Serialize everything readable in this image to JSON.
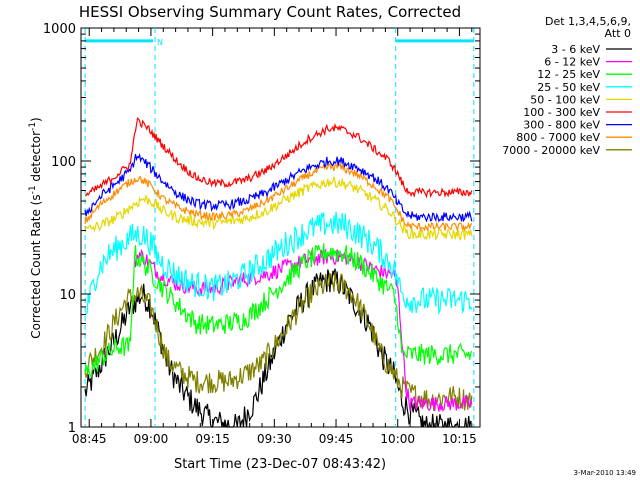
{
  "chart_data": {
    "type": "line",
    "title": "HESSI Observing Summary Count Rates, Corrected",
    "ylabel_parts": [
      "Corrected Count Rate (s",
      "-1",
      " detector",
      "-1",
      ")"
    ],
    "xlabel": "Start Time (23-Dec-07 08:43:42)",
    "timestamp": "3-Mar-2010 13:49",
    "ylog": true,
    "ylim": [
      1,
      1000
    ],
    "xlim_minutes_after_0843": [
      0,
      97
    ],
    "x_ticks": [
      {
        "label": "08:45",
        "minute": 2
      },
      {
        "label": "09:00",
        "minute": 17
      },
      {
        "label": "09:15",
        "minute": 32
      },
      {
        "label": "09:30",
        "minute": 47
      },
      {
        "label": "09:45",
        "minute": 62
      },
      {
        "label": "10:00",
        "minute": 77
      },
      {
        "label": "10:15",
        "minute": 92
      }
    ],
    "y_ticks": [
      {
        "label": "1",
        "value": 1
      },
      {
        "label": "10",
        "value": 10
      },
      {
        "label": "100",
        "value": 100
      },
      {
        "label": "1000",
        "value": 1000
      }
    ],
    "legend_header": [
      "Det 1,3,4,5,6,9,",
      "Att 0"
    ],
    "legend_position": "right",
    "markers": {
      "vlines_minutes": [
        1,
        18,
        76.5,
        95.5
      ],
      "bars": [
        {
          "from": 1,
          "to": 17.5,
          "value": 800,
          "label": "N"
        },
        {
          "from": 76.5,
          "to": 95.5,
          "value": 800,
          "label": ""
        }
      ],
      "color": "#00e5ff"
    },
    "series": [
      {
        "name": "3 - 6 keV",
        "color": "#000000",
        "noise": 0.1,
        "points": [
          [
            1,
            1.8
          ],
          [
            5,
            3
          ],
          [
            9,
            5
          ],
          [
            12,
            8
          ],
          [
            15,
            10
          ],
          [
            17,
            8
          ],
          [
            19,
            5
          ],
          [
            21,
            3
          ],
          [
            24,
            2
          ],
          [
            28,
            1.4
          ],
          [
            32,
            1.1
          ],
          [
            38,
            1.0
          ],
          [
            42,
            1.5
          ],
          [
            46,
            3
          ],
          [
            50,
            6
          ],
          [
            54,
            9
          ],
          [
            58,
            12
          ],
          [
            61,
            13
          ],
          [
            63,
            12
          ],
          [
            66,
            9
          ],
          [
            70,
            6
          ],
          [
            73,
            3.5
          ],
          [
            76,
            2.5
          ],
          [
            78,
            1.6
          ],
          [
            80,
            1.3
          ],
          [
            84,
            1.0
          ],
          [
            95,
            1.0
          ]
        ]
      },
      {
        "name": "6 - 12 keV",
        "color": "#ff00ff",
        "noise": 0.06,
        "points": [
          [
            13,
            17
          ],
          [
            14,
            20
          ],
          [
            16,
            18
          ],
          [
            19,
            14
          ],
          [
            23,
            12
          ],
          [
            28,
            11
          ],
          [
            32,
            11
          ],
          [
            36,
            12
          ],
          [
            40,
            13
          ],
          [
            45,
            14
          ],
          [
            50,
            16
          ],
          [
            55,
            18
          ],
          [
            60,
            19
          ],
          [
            64,
            19
          ],
          [
            68,
            17
          ],
          [
            72,
            15
          ],
          [
            76,
            14
          ],
          [
            77,
            11
          ],
          [
            79,
            2
          ],
          [
            80,
            1.5
          ],
          [
            95,
            1.5
          ]
        ]
      },
      {
        "name": "12 - 25 keV",
        "color": "#00ff00",
        "noise": 0.08,
        "points": [
          [
            1,
            2.5
          ],
          [
            6,
            3.5
          ],
          [
            9,
            4
          ],
          [
            12,
            4
          ],
          [
            13,
            20
          ],
          [
            16,
            16
          ],
          [
            20,
            11
          ],
          [
            24,
            8
          ],
          [
            28,
            6
          ],
          [
            32,
            5.8
          ],
          [
            36,
            6
          ],
          [
            40,
            6.5
          ],
          [
            45,
            9
          ],
          [
            50,
            13
          ],
          [
            55,
            18
          ],
          [
            60,
            21
          ],
          [
            64,
            20
          ],
          [
            68,
            17
          ],
          [
            72,
            13
          ],
          [
            76,
            10
          ],
          [
            77,
            7
          ],
          [
            78,
            3.5
          ],
          [
            95,
            3.5
          ]
        ]
      },
      {
        "name": "25 - 50 keV",
        "color": "#00ffff",
        "noise": 0.1,
        "points": [
          [
            1,
            7
          ],
          [
            4,
            15
          ],
          [
            7,
            20
          ],
          [
            10,
            24
          ],
          [
            13,
            28
          ],
          [
            15,
            28
          ],
          [
            17,
            24
          ],
          [
            19,
            18
          ],
          [
            23,
            14
          ],
          [
            27,
            12
          ],
          [
            32,
            11
          ],
          [
            36,
            12
          ],
          [
            40,
            14
          ],
          [
            45,
            18
          ],
          [
            50,
            24
          ],
          [
            55,
            30
          ],
          [
            60,
            34
          ],
          [
            64,
            33
          ],
          [
            68,
            28
          ],
          [
            72,
            22
          ],
          [
            76,
            16
          ],
          [
            78,
            10
          ],
          [
            80,
            9
          ],
          [
            95,
            9
          ]
        ]
      },
      {
        "name": "50 - 100 keV",
        "color": "#e5d800",
        "noise": 0.04,
        "points": [
          [
            1,
            30
          ],
          [
            5,
            33
          ],
          [
            9,
            38
          ],
          [
            12,
            45
          ],
          [
            15,
            52
          ],
          [
            17,
            50
          ],
          [
            20,
            42
          ],
          [
            24,
            37
          ],
          [
            28,
            35
          ],
          [
            32,
            34
          ],
          [
            36,
            35
          ],
          [
            40,
            37
          ],
          [
            45,
            42
          ],
          [
            50,
            52
          ],
          [
            55,
            62
          ],
          [
            60,
            70
          ],
          [
            63,
            69
          ],
          [
            67,
            62
          ],
          [
            71,
            52
          ],
          [
            75,
            42
          ],
          [
            77,
            35
          ],
          [
            79,
            29
          ],
          [
            81,
            28
          ],
          [
            95,
            28
          ]
        ]
      },
      {
        "name": "100 - 300 keV",
        "color": "#ff0000",
        "noise": 0.03,
        "points": [
          [
            1,
            55
          ],
          [
            5,
            65
          ],
          [
            9,
            80
          ],
          [
            12,
            95
          ],
          [
            13.5,
            200
          ],
          [
            16,
            180
          ],
          [
            20,
            130
          ],
          [
            24,
            95
          ],
          [
            28,
            75
          ],
          [
            32,
            68
          ],
          [
            36,
            68
          ],
          [
            40,
            72
          ],
          [
            45,
            85
          ],
          [
            50,
            110
          ],
          [
            55,
            145
          ],
          [
            60,
            175
          ],
          [
            63,
            175
          ],
          [
            67,
            155
          ],
          [
            71,
            125
          ],
          [
            75,
            100
          ],
          [
            77,
            80
          ],
          [
            79,
            60
          ],
          [
            81,
            58
          ],
          [
            95,
            58
          ]
        ]
      },
      {
        "name": "300 - 800 keV",
        "color": "#0000ff",
        "noise": 0.035,
        "points": [
          [
            1,
            40
          ],
          [
            5,
            55
          ],
          [
            9,
            70
          ],
          [
            12,
            85
          ],
          [
            13.5,
            110
          ],
          [
            16,
            95
          ],
          [
            20,
            70
          ],
          [
            24,
            55
          ],
          [
            28,
            48
          ],
          [
            32,
            46
          ],
          [
            36,
            47
          ],
          [
            40,
            50
          ],
          [
            45,
            58
          ],
          [
            50,
            72
          ],
          [
            55,
            88
          ],
          [
            60,
            100
          ],
          [
            63,
            100
          ],
          [
            67,
            90
          ],
          [
            71,
            76
          ],
          [
            75,
            60
          ],
          [
            77,
            48
          ],
          [
            79,
            40
          ],
          [
            81,
            38
          ],
          [
            95,
            38
          ]
        ]
      },
      {
        "name": "800 - 7000 keV",
        "color": "#ff8c00",
        "noise": 0.03,
        "points": [
          [
            1,
            35
          ],
          [
            5,
            48
          ],
          [
            9,
            60
          ],
          [
            12,
            70
          ],
          [
            14,
            75
          ],
          [
            17,
            65
          ],
          [
            20,
            52
          ],
          [
            24,
            44
          ],
          [
            28,
            40
          ],
          [
            32,
            38
          ],
          [
            36,
            39
          ],
          [
            40,
            42
          ],
          [
            45,
            50
          ],
          [
            50,
            62
          ],
          [
            55,
            78
          ],
          [
            60,
            90
          ],
          [
            63,
            90
          ],
          [
            67,
            80
          ],
          [
            71,
            66
          ],
          [
            75,
            52
          ],
          [
            77,
            42
          ],
          [
            79,
            33
          ],
          [
            81,
            32
          ],
          [
            95,
            32
          ]
        ]
      },
      {
        "name": "7000 - 20000 keV",
        "color": "#808000",
        "noise": 0.09,
        "points": [
          [
            1,
            2.8
          ],
          [
            5,
            4
          ],
          [
            8,
            6
          ],
          [
            11,
            9
          ],
          [
            14,
            10
          ],
          [
            17,
            8
          ],
          [
            19,
            5
          ],
          [
            21,
            3.2
          ],
          [
            24,
            2.6
          ],
          [
            28,
            2.2
          ],
          [
            32,
            2.2
          ],
          [
            36,
            2.2
          ],
          [
            40,
            2.5
          ],
          [
            44,
            3
          ],
          [
            48,
            4.5
          ],
          [
            52,
            7
          ],
          [
            56,
            10
          ],
          [
            60,
            12
          ],
          [
            63,
            12
          ],
          [
            66,
            10
          ],
          [
            70,
            6
          ],
          [
            73,
            3.5
          ],
          [
            76,
            2.5
          ],
          [
            78,
            2
          ],
          [
            80,
            1.8
          ],
          [
            85,
            1.6
          ],
          [
            90,
            1.7
          ],
          [
            95,
            1.6
          ]
        ]
      }
    ]
  }
}
